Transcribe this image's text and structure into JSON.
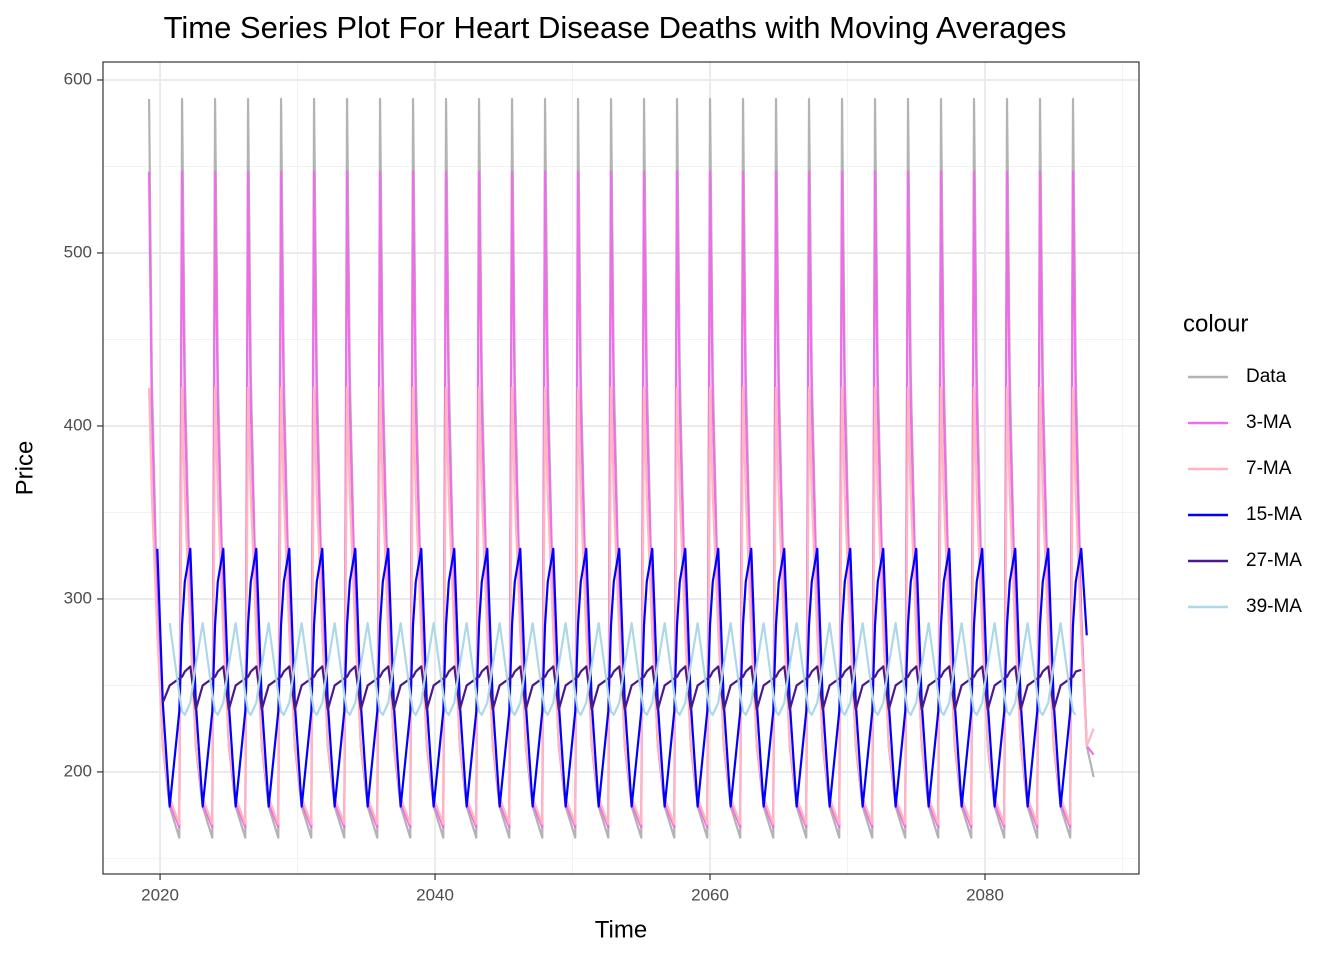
{
  "chart_data": {
    "type": "line",
    "title": "Time Series Plot For Heart Disease Deaths with Moving Averages",
    "x_label": "Time",
    "y_label": "Price",
    "legend_title": "colour",
    "xlim": [
      2015.85,
      2091.2
    ],
    "xticks": [
      2020,
      2040,
      2060,
      2080
    ],
    "ylim": [
      141,
      610.4
    ],
    "yticks": [
      200,
      300,
      400,
      500,
      600
    ],
    "grid": true,
    "x": [
      2019.2,
      2019.4,
      2019.8,
      2020.2,
      2020.7,
      2021.4,
      2021.6,
      2021.8,
      2022.2,
      2022.6,
      2023.1,
      2023.8,
      2024.0,
      2024.2,
      2024.6,
      2025.0,
      2025.5,
      2026.2,
      2026.4,
      2026.6,
      2027.0,
      2027.4,
      2027.9,
      2028.6,
      2028.8,
      2029.0,
      2029.4,
      2029.8,
      2030.3,
      2031.0,
      2031.2,
      2031.4,
      2031.8,
      2032.2,
      2032.7,
      2033.4,
      2033.6,
      2033.8,
      2034.2,
      2034.6,
      2035.1,
      2035.8,
      2036.0,
      2036.2,
      2036.6,
      2037.0,
      2037.5,
      2038.2,
      2038.4,
      2038.6,
      2039.0,
      2039.4,
      2039.9,
      2040.6,
      2040.8,
      2041.0,
      2041.4,
      2041.8,
      2042.3,
      2043.0,
      2043.2,
      2043.4,
      2043.8,
      2044.2,
      2044.7,
      2045.4,
      2045.6,
      2045.8,
      2046.2,
      2046.6,
      2047.1,
      2047.8,
      2048.0,
      2048.2,
      2048.6,
      2049.0,
      2049.5,
      2050.2,
      2050.4,
      2050.6,
      2051.0,
      2051.4,
      2051.9,
      2052.6,
      2052.8,
      2053.0,
      2053.4,
      2053.8,
      2054.3,
      2055.0,
      2055.2,
      2055.4,
      2055.8,
      2056.2,
      2056.7,
      2057.4,
      2057.6,
      2057.8,
      2058.2,
      2058.6,
      2059.1,
      2059.8,
      2060.0,
      2060.2,
      2060.6,
      2061.0,
      2061.5,
      2062.2,
      2062.4,
      2062.6,
      2063.0,
      2063.4,
      2063.9,
      2064.6,
      2064.8,
      2065.0,
      2065.4,
      2065.8,
      2066.3,
      2067.0,
      2067.2,
      2067.4,
      2067.8,
      2068.2,
      2068.7,
      2069.4,
      2069.6,
      2069.8,
      2070.2,
      2070.6,
      2071.1,
      2071.8,
      2072.0,
      2072.2,
      2072.6,
      2073.0,
      2073.5,
      2074.2,
      2074.4,
      2074.6,
      2075.0,
      2075.4,
      2075.9,
      2076.6,
      2076.8,
      2077.0,
      2077.4,
      2077.8,
      2078.3,
      2079.0,
      2079.2,
      2079.4,
      2079.8,
      2080.2,
      2080.7,
      2081.4,
      2081.6,
      2081.8,
      2082.2,
      2082.6,
      2083.1,
      2083.8,
      2084.0,
      2084.2,
      2084.6,
      2085.0,
      2085.5,
      2086.2,
      2086.4,
      2086.6,
      2087.0,
      2087.4,
      2087.9
    ],
    "series": [
      {
        "name": "Data",
        "color": "#b3b3b3",
        "values": [
          589,
          430,
          290,
          215,
          180,
          162,
          589,
          430,
          290,
          215,
          180,
          162,
          589,
          430,
          290,
          215,
          180,
          162,
          589,
          430,
          290,
          215,
          180,
          162,
          589,
          430,
          290,
          215,
          180,
          162,
          589,
          430,
          290,
          215,
          180,
          162,
          589,
          430,
          290,
          215,
          180,
          162,
          589,
          430,
          290,
          215,
          180,
          162,
          589,
          430,
          290,
          215,
          180,
          162,
          589,
          430,
          290,
          215,
          180,
          162,
          589,
          430,
          290,
          215,
          180,
          162,
          589,
          430,
          290,
          215,
          180,
          162,
          589,
          430,
          290,
          215,
          180,
          162,
          589,
          430,
          290,
          215,
          180,
          162,
          589,
          430,
          290,
          215,
          180,
          162,
          589,
          430,
          290,
          215,
          180,
          162,
          589,
          430,
          290,
          215,
          180,
          162,
          589,
          430,
          290,
          215,
          180,
          162,
          589,
          430,
          290,
          215,
          180,
          162,
          589,
          430,
          290,
          215,
          180,
          162,
          589,
          430,
          290,
          215,
          180,
          162,
          589,
          430,
          290,
          215,
          180,
          162,
          589,
          430,
          290,
          215,
          180,
          162,
          589,
          430,
          290,
          215,
          180,
          162,
          589,
          430,
          290,
          215,
          180,
          162,
          589,
          430,
          290,
          215,
          180,
          162,
          589,
          430,
          290,
          215,
          180,
          162,
          589,
          430,
          290,
          215,
          180,
          162,
          589,
          430,
          290,
          215,
          197
        ]
      },
      {
        "name": "3-MA",
        "color": "#ee6ee8",
        "values": [
          547,
          410,
          290,
          215,
          182,
          168,
          547,
          410,
          290,
          215,
          182,
          168,
          547,
          410,
          290,
          215,
          182,
          168,
          547,
          410,
          290,
          215,
          182,
          168,
          547,
          410,
          290,
          215,
          182,
          168,
          547,
          410,
          290,
          215,
          182,
          168,
          547,
          410,
          290,
          215,
          182,
          168,
          547,
          410,
          290,
          215,
          182,
          168,
          547,
          410,
          290,
          215,
          182,
          168,
          547,
          410,
          290,
          215,
          182,
          168,
          547,
          410,
          290,
          215,
          182,
          168,
          547,
          410,
          290,
          215,
          182,
          168,
          547,
          410,
          290,
          215,
          182,
          168,
          547,
          410,
          290,
          215,
          182,
          168,
          547,
          410,
          290,
          215,
          182,
          168,
          547,
          410,
          290,
          215,
          182,
          168,
          547,
          410,
          290,
          215,
          182,
          168,
          547,
          410,
          290,
          215,
          182,
          168,
          547,
          410,
          290,
          215,
          182,
          168,
          547,
          410,
          290,
          215,
          182,
          168,
          547,
          410,
          290,
          215,
          182,
          168,
          547,
          410,
          290,
          215,
          182,
          168,
          547,
          410,
          290,
          215,
          182,
          168,
          547,
          410,
          290,
          215,
          182,
          168,
          547,
          410,
          290,
          215,
          182,
          168,
          547,
          410,
          290,
          215,
          182,
          168,
          547,
          410,
          290,
          215,
          182,
          168,
          547,
          410,
          290,
          215,
          182,
          168,
          547,
          410,
          290,
          215,
          210
        ]
      },
      {
        "name": "7-MA",
        "color": "#ffb6c1",
        "values": [
          422,
          360,
          280,
          215,
          185,
          170,
          422,
          360,
          280,
          215,
          185,
          170,
          422,
          360,
          280,
          215,
          185,
          170,
          422,
          360,
          280,
          215,
          185,
          170,
          422,
          360,
          280,
          215,
          185,
          170,
          422,
          360,
          280,
          215,
          185,
          170,
          422,
          360,
          280,
          215,
          185,
          170,
          422,
          360,
          280,
          215,
          185,
          170,
          422,
          360,
          280,
          215,
          185,
          170,
          422,
          360,
          280,
          215,
          185,
          170,
          422,
          360,
          280,
          215,
          185,
          170,
          422,
          360,
          280,
          215,
          185,
          170,
          422,
          360,
          280,
          215,
          185,
          170,
          422,
          360,
          280,
          215,
          185,
          170,
          422,
          360,
          280,
          215,
          185,
          170,
          422,
          360,
          280,
          215,
          185,
          170,
          422,
          360,
          280,
          215,
          185,
          170,
          422,
          360,
          280,
          215,
          185,
          170,
          422,
          360,
          280,
          215,
          185,
          170,
          422,
          360,
          280,
          215,
          185,
          170,
          422,
          360,
          280,
          215,
          185,
          170,
          422,
          360,
          280,
          215,
          185,
          170,
          422,
          360,
          280,
          215,
          185,
          170,
          422,
          360,
          280,
          215,
          185,
          170,
          422,
          360,
          280,
          215,
          185,
          170,
          422,
          360,
          280,
          215,
          185,
          170,
          422,
          360,
          280,
          215,
          185,
          170,
          422,
          360,
          280,
          215,
          185,
          170,
          422,
          360,
          280,
          215,
          225
        ]
      },
      {
        "name": "15-MA",
        "color": "#0000ff",
        "values": [
          null,
          null,
          329,
          240,
          180,
          235,
          285,
          310,
          329,
          240,
          180,
          235,
          285,
          310,
          329,
          240,
          180,
          235,
          285,
          310,
          329,
          240,
          180,
          235,
          285,
          310,
          329,
          240,
          180,
          235,
          285,
          310,
          329,
          240,
          180,
          235,
          285,
          310,
          329,
          240,
          180,
          235,
          285,
          310,
          329,
          240,
          180,
          235,
          285,
          310,
          329,
          240,
          180,
          235,
          285,
          310,
          329,
          240,
          180,
          235,
          285,
          310,
          329,
          240,
          180,
          235,
          285,
          310,
          329,
          240,
          180,
          235,
          285,
          310,
          329,
          240,
          180,
          235,
          285,
          310,
          329,
          240,
          180,
          235,
          285,
          310,
          329,
          240,
          180,
          235,
          285,
          310,
          329,
          240,
          180,
          235,
          285,
          310,
          329,
          240,
          180,
          235,
          285,
          310,
          329,
          240,
          180,
          235,
          285,
          310,
          329,
          240,
          180,
          235,
          285,
          310,
          329,
          240,
          180,
          235,
          285,
          310,
          329,
          240,
          180,
          235,
          285,
          310,
          329,
          240,
          180,
          235,
          285,
          310,
          329,
          240,
          180,
          235,
          285,
          310,
          329,
          240,
          180,
          235,
          285,
          310,
          329,
          240,
          180,
          235,
          285,
          310,
          329,
          240,
          180,
          235,
          285,
          310,
          329,
          240,
          180,
          235,
          285,
          310,
          329,
          240,
          180,
          235,
          285,
          310,
          329,
          279,
          null
        ]
      },
      {
        "name": "27-MA",
        "color": "#4b1a8a",
        "values": [
          null,
          null,
          null,
          240,
          250,
          254,
          255,
          258,
          261,
          236,
          250,
          254,
          255,
          258,
          261,
          236,
          250,
          254,
          255,
          258,
          261,
          236,
          250,
          254,
          255,
          258,
          261,
          236,
          250,
          254,
          255,
          258,
          261,
          236,
          250,
          254,
          255,
          258,
          261,
          236,
          250,
          254,
          255,
          258,
          261,
          236,
          250,
          254,
          255,
          258,
          261,
          236,
          250,
          254,
          255,
          258,
          261,
          236,
          250,
          254,
          255,
          258,
          261,
          236,
          250,
          254,
          255,
          258,
          261,
          236,
          250,
          254,
          255,
          258,
          261,
          236,
          250,
          254,
          255,
          258,
          261,
          236,
          250,
          254,
          255,
          258,
          261,
          236,
          250,
          254,
          255,
          258,
          261,
          236,
          250,
          254,
          255,
          258,
          261,
          236,
          250,
          254,
          255,
          258,
          261,
          236,
          250,
          254,
          255,
          258,
          261,
          236,
          250,
          254,
          255,
          258,
          261,
          236,
          250,
          254,
          255,
          258,
          261,
          236,
          250,
          254,
          255,
          258,
          261,
          236,
          250,
          254,
          255,
          258,
          261,
          236,
          250,
          254,
          255,
          258,
          261,
          236,
          250,
          254,
          255,
          258,
          261,
          236,
          250,
          254,
          255,
          258,
          261,
          236,
          250,
          254,
          255,
          258,
          261,
          236,
          250,
          254,
          255,
          258,
          261,
          236,
          250,
          254,
          255,
          258,
          259,
          null,
          null
        ]
      },
      {
        "name": "39-MA",
        "color": "#add8e6",
        "values": [
          null,
          null,
          null,
          null,
          286,
          245,
          235,
          233,
          240,
          262,
          286,
          245,
          235,
          233,
          240,
          262,
          286,
          245,
          235,
          233,
          240,
          262,
          286,
          245,
          235,
          233,
          240,
          262,
          286,
          245,
          235,
          233,
          240,
          262,
          286,
          245,
          235,
          233,
          240,
          262,
          286,
          245,
          235,
          233,
          240,
          262,
          286,
          245,
          235,
          233,
          240,
          262,
          286,
          245,
          235,
          233,
          240,
          262,
          286,
          245,
          235,
          233,
          240,
          262,
          286,
          245,
          235,
          233,
          240,
          262,
          286,
          245,
          235,
          233,
          240,
          262,
          286,
          245,
          235,
          233,
          240,
          262,
          286,
          245,
          235,
          233,
          240,
          262,
          286,
          245,
          235,
          233,
          240,
          262,
          286,
          245,
          235,
          233,
          240,
          262,
          286,
          245,
          235,
          233,
          240,
          262,
          286,
          245,
          235,
          233,
          240,
          262,
          286,
          245,
          235,
          233,
          240,
          262,
          286,
          245,
          235,
          233,
          240,
          262,
          286,
          245,
          235,
          233,
          240,
          262,
          286,
          245,
          235,
          233,
          240,
          262,
          286,
          245,
          235,
          233,
          240,
          262,
          286,
          245,
          235,
          233,
          240,
          262,
          286,
          245,
          235,
          233,
          240,
          262,
          286,
          245,
          235,
          233,
          240,
          262,
          286,
          245,
          235,
          233,
          240,
          262,
          286,
          245,
          235,
          233,
          null,
          null,
          null
        ]
      }
    ]
  }
}
